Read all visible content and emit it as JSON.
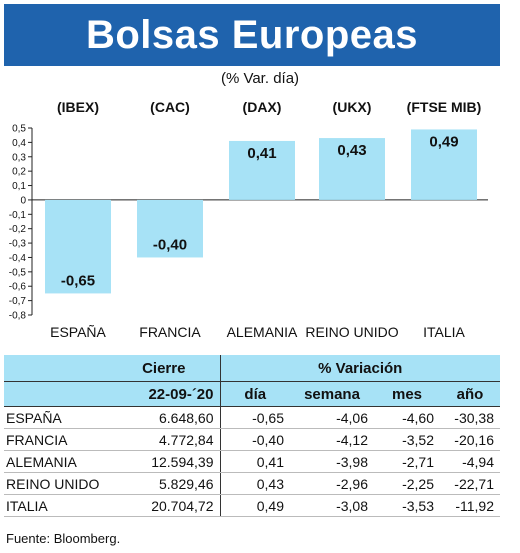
{
  "title": "Bolsas Europeas",
  "subtitle": "(% Var. día)",
  "chart_data": {
    "type": "bar",
    "categories": [
      "ESPAÑA",
      "FRANCIA",
      "ALEMANIA",
      "REINO UNIDO",
      "ITALIA"
    ],
    "index_labels": [
      "(IBEX)",
      "(CAC)",
      "(DAX)",
      "(UKX)",
      "(FTSE MIB)"
    ],
    "values": [
      -0.65,
      -0.4,
      0.41,
      0.43,
      0.49
    ],
    "value_labels": [
      "-0,65",
      "-0,40",
      "0,41",
      "0,43",
      "0,49"
    ],
    "ylim": [
      -0.8,
      0.5
    ],
    "yticks": [
      0.5,
      0.4,
      0.3,
      0.2,
      0.1,
      0,
      -0.1,
      -0.2,
      -0.3,
      -0.4,
      -0.5,
      -0.6,
      -0.7,
      -0.8
    ],
    "ytick_labels": [
      "0,5",
      "0,4",
      "0,3",
      "0,2",
      "0,1",
      "0",
      "-0,1",
      "-0,2",
      "-0,3",
      "-0,4",
      "-0,5",
      "-0,6",
      "-0,7",
      "-0,8"
    ],
    "bar_color": "#a7e2f6",
    "grid": false
  },
  "table": {
    "header_cierre": "Cierre",
    "header_variacion": "% Variación",
    "date": "22-09-´20",
    "cols": [
      "día",
      "semana",
      "mes",
      "año"
    ],
    "rows": [
      {
        "name": "ESPAÑA",
        "cierre": "6.648,60",
        "dia": "-0,65",
        "semana": "-4,06",
        "mes": "-4,60",
        "anio": "-30,38"
      },
      {
        "name": "FRANCIA",
        "cierre": "4.772,84",
        "dia": "-0,40",
        "semana": "-4,12",
        "mes": "-3,52",
        "anio": "-20,16"
      },
      {
        "name": "ALEMANIA",
        "cierre": "12.594,39",
        "dia": "0,41",
        "semana": "-3,98",
        "mes": "-2,71",
        "anio": "-4,94"
      },
      {
        "name": "REINO UNIDO",
        "cierre": "5.829,46",
        "dia": "0,43",
        "semana": "-2,96",
        "mes": "-2,25",
        "anio": "-22,71"
      },
      {
        "name": "ITALIA",
        "cierre": "20.704,72",
        "dia": "0,49",
        "semana": "-3,08",
        "mes": "-3,53",
        "anio": "-11,92"
      }
    ]
  },
  "source": "Fuente: Bloomberg.",
  "colors": {
    "banner": "#1f63ad",
    "accent": "#a7e2f6"
  }
}
